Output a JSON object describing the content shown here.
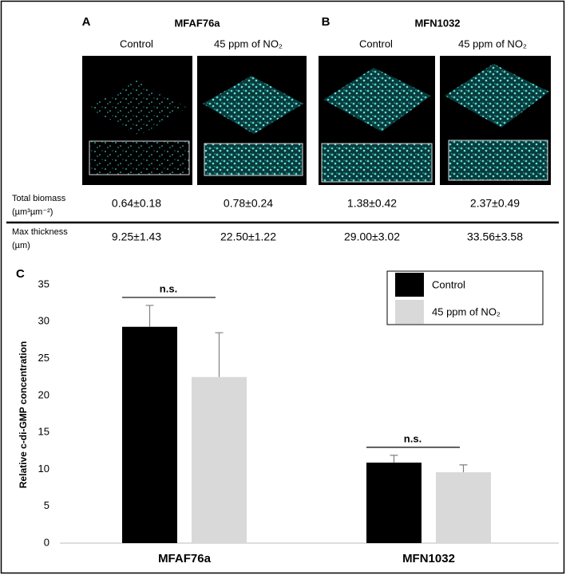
{
  "panels": [
    {
      "letter": "A",
      "strain": "MFAF76a",
      "conditions": [
        "Control",
        "45 ppm of NO₂"
      ]
    },
    {
      "letter": "B",
      "strain": "MFN1032",
      "conditions": [
        "Control",
        "45 ppm of NO₂"
      ]
    }
  ],
  "table": {
    "rows": [
      {
        "label": [
          "Total biomass",
          "(µm³µm⁻²)"
        ],
        "cells": [
          "0.64±0.18",
          "0.78±0.24",
          "1.38±0.42",
          "2.37±0.49"
        ]
      },
      {
        "label": [
          "Max thickness",
          "(µm)"
        ],
        "cells": [
          "9.25±1.43",
          "22.50±1.22",
          "29.00±3.02",
          "33.56±3.58"
        ]
      }
    ]
  },
  "chart_data": {
    "type": "bar",
    "panel_label": "C",
    "y_label": "Relative c-di-GMP concentration",
    "categories": [
      "MFAF76a",
      "MFN1032"
    ],
    "series": [
      {
        "name": "Control",
        "color": "#000000",
        "values": [
          29.3,
          10.9
        ],
        "errors": [
          2.9,
          1.0
        ]
      },
      {
        "name": "45 ppm of NO₂",
        "color": "#d9d9d9",
        "values": [
          22.5,
          9.6
        ],
        "errors": [
          6.0,
          1.0
        ]
      }
    ],
    "annotations": [
      "n.s.",
      "n.s."
    ],
    "ylim": [
      0,
      35
    ],
    "yticks": [
      0,
      5,
      10,
      15,
      20,
      25,
      30,
      35
    ],
    "error_color": "#808080",
    "grid": false,
    "legend": "top-right"
  }
}
